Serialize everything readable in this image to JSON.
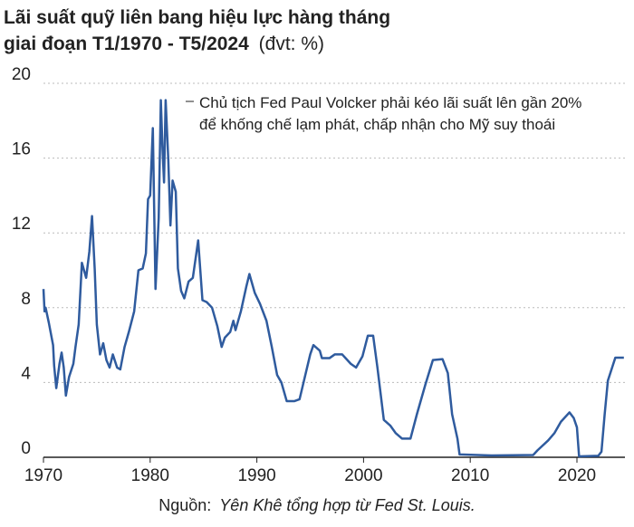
{
  "chart_data": {
    "type": "line",
    "title": "Lãi suất quỹ liên bang hiệu lực hàng tháng",
    "subtitle": "giai đoạn T1/1970 - T5/2024",
    "unit_note": "(đvt: %)",
    "annotation": [
      "Chủ tịch Fed Paul Volcker phải kéo lãi suất lên gần 20%",
      "để khống chế lạm phát, chấp nhận cho Mỹ suy thoái"
    ],
    "source_prefix": "Nguồn:",
    "source": "Yên Khê tổng hợp từ Fed St. Louis.",
    "xlim": [
      1970,
      2024.5
    ],
    "xticks": [
      1970,
      1980,
      1990,
      2000,
      2010,
      2020
    ],
    "ylim": [
      0,
      20
    ],
    "yticks": [
      0,
      4,
      8,
      12,
      16,
      20
    ],
    "grid": true,
    "series": [
      {
        "color": "#2f5b9e",
        "x": [
          1970.0,
          1970.1,
          1970.2,
          1970.5,
          1970.9,
          1971.0,
          1971.2,
          1971.5,
          1971.7,
          1971.9,
          1972.1,
          1972.4,
          1972.8,
          1973.0,
          1973.3,
          1973.6,
          1973.8,
          1974.0,
          1974.3,
          1974.55,
          1974.8,
          1975.0,
          1975.3,
          1975.6,
          1975.9,
          1976.2,
          1976.5,
          1976.9,
          1977.2,
          1977.6,
          1978.0,
          1978.5,
          1978.9,
          1979.3,
          1979.6,
          1979.8,
          1980.0,
          1980.25,
          1980.5,
          1980.8,
          1981.0,
          1981.15,
          1981.3,
          1981.45,
          1981.7,
          1981.9,
          1982.1,
          1982.4,
          1982.6,
          1982.9,
          1983.2,
          1983.6,
          1984.0,
          1984.5,
          1984.9,
          1985.3,
          1985.8,
          1986.3,
          1986.7,
          1987.0,
          1987.5,
          1987.8,
          1988.0,
          1988.5,
          1989.0,
          1989.3,
          1989.8,
          1990.3,
          1990.9,
          1991.4,
          1991.9,
          1992.3,
          1992.8,
          1993.5,
          1994.0,
          1994.5,
          1995.0,
          1995.3,
          1995.9,
          1996.1,
          1996.8,
          1997.3,
          1998.0,
          1998.8,
          1999.3,
          1999.9,
          2000.4,
          2000.9,
          2001.3,
          2001.9,
          2002.5,
          2003.0,
          2003.6,
          2004.4,
          2005.0,
          2005.8,
          2006.5,
          2007.4,
          2007.9,
          2008.3,
          2008.8,
          2009.0,
          2012.0,
          2015.9,
          2016.3,
          2017.3,
          2017.9,
          2018.5,
          2019.3,
          2019.7,
          2020.0,
          2020.2,
          2022.0,
          2022.3,
          2022.6,
          2022.9,
          2023.3,
          2023.6,
          2024.4
        ],
        "values": [
          9.0,
          7.8,
          8.0,
          7.2,
          6.0,
          4.9,
          3.7,
          5.0,
          5.6,
          4.8,
          3.3,
          4.3,
          5.0,
          5.9,
          7.1,
          10.4,
          10.0,
          9.6,
          11.0,
          12.9,
          10.1,
          7.1,
          5.5,
          6.1,
          5.2,
          4.8,
          5.5,
          4.8,
          4.7,
          5.9,
          6.7,
          7.8,
          10.0,
          10.1,
          10.9,
          13.8,
          14.0,
          17.6,
          9.0,
          12.8,
          19.1,
          16.6,
          14.7,
          19.1,
          15.9,
          12.4,
          14.8,
          14.2,
          10.1,
          8.9,
          8.5,
          9.4,
          9.6,
          11.6,
          8.4,
          8.3,
          8.0,
          7.0,
          5.9,
          6.4,
          6.7,
          7.3,
          6.8,
          7.8,
          9.1,
          9.8,
          8.8,
          8.2,
          7.3,
          5.9,
          4.4,
          4.0,
          3.0,
          3.0,
          3.1,
          4.3,
          5.5,
          6.0,
          5.7,
          5.3,
          5.3,
          5.5,
          5.5,
          5.0,
          4.8,
          5.4,
          6.5,
          6.5,
          4.8,
          2.0,
          1.7,
          1.3,
          1.0,
          1.0,
          2.3,
          3.9,
          5.2,
          5.25,
          4.5,
          2.3,
          1.0,
          0.15,
          0.1,
          0.12,
          0.37,
          0.9,
          1.3,
          1.9,
          2.4,
          2.1,
          1.6,
          0.05,
          0.08,
          0.3,
          2.3,
          4.1,
          4.8,
          5.33,
          5.33
        ]
      }
    ]
  }
}
